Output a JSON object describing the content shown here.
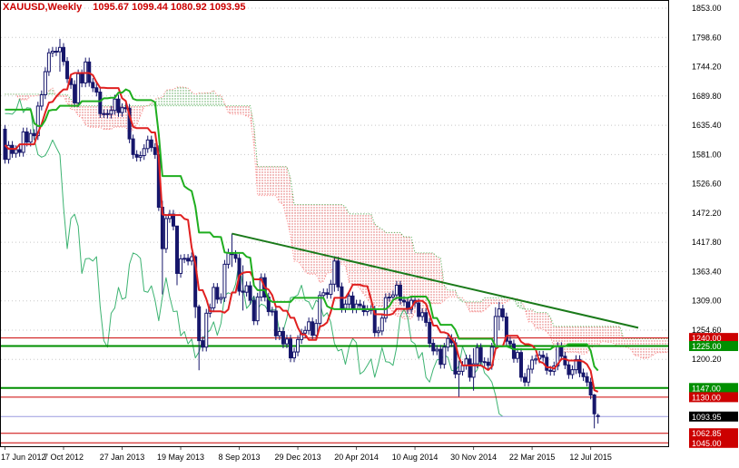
{
  "header": {
    "symbol_period": "XAUUSD,Weekly",
    "ohlc": "1095.67 1099.44 1080.92 1093.95"
  },
  "colors": {
    "title": "#cc0000",
    "background": "#ffffff",
    "border": "#000000",
    "grid": "#c8c8c8",
    "axis_text": "#000000",
    "bull": "#ffffff",
    "bear": "#16166b",
    "candle_stroke": "#16166b",
    "tenkan": "#e02020",
    "kijun": "#1fae1f",
    "senkou_a": "#ff7a7a",
    "senkou_b": "#4caf50",
    "cloud_red": "#e06060",
    "cloud_green": "#5aa85a",
    "chikou": "#3cb371",
    "trendline": "#1a7a1a",
    "red_level": "#cc0000",
    "green_level": "#008f00",
    "current_line": "#9a9ae0",
    "current_badge": "#000000",
    "badge_text": "#ffffff"
  },
  "chart_data": {
    "type": "candlestick",
    "symbol": "XAUUSD",
    "timeframe": "Weekly",
    "indicators": [
      "Ichimoku Kinko Hyo (9,26,52)",
      "descending trendline",
      "horizontal support/resistance levels"
    ],
    "y_axis": {
      "labels": [
        1853.0,
        1798.6,
        1744.2,
        1689.8,
        1635.4,
        1581.0,
        1526.6,
        1472.2,
        1417.8,
        1363.4,
        1309.0,
        1254.6,
        1200.2
      ],
      "step": 54.4,
      "ylim": [
        1037,
        1869
      ],
      "grid": true
    },
    "x_axis": {
      "labels": [
        "17 Jun 2012",
        "7 Oct 2012",
        "27 Jan 2013",
        "19 May 2013",
        "8 Sep 2013",
        "29 Dec 2013",
        "20 Apr 2014",
        "10 Aug 2014",
        "30 Nov 2014",
        "22 Mar 2015",
        "12 Jul 2015"
      ],
      "indices": [
        0,
        16,
        32,
        48,
        64,
        80,
        96,
        112,
        128,
        144,
        160
      ]
    },
    "pre_closes": [
      1620,
      1657,
      1622,
      1636,
      1680,
      1636,
      1743,
      1756,
      1788,
      1725,
      1688,
      1747,
      1712,
      1598,
      1604,
      1606,
      1617,
      1639,
      1664,
      1721,
      1725,
      1774,
      1723,
      1712,
      1706,
      1660,
      1713,
      1662,
      1597,
      1643,
      1631,
      1642,
      1579,
      1592,
      1555,
      1594,
      1573,
      1627,
      1596,
      1628
    ],
    "closes": [
      1572,
      1598,
      1583,
      1590,
      1585,
      1623,
      1604,
      1620,
      1616,
      1671,
      1692,
      1735,
      1770,
      1773,
      1772,
      1780,
      1754,
      1722,
      1711,
      1677,
      1731,
      1714,
      1753,
      1715,
      1705,
      1697,
      1657,
      1657,
      1656,
      1663,
      1684,
      1659,
      1668,
      1667,
      1610,
      1581,
      1576,
      1579,
      1592,
      1608,
      1594,
      1581,
      1483,
      1406,
      1462,
      1470,
      1448,
      1360,
      1387,
      1388,
      1383,
      1391,
      1298,
      1235,
      1223,
      1286,
      1296,
      1334,
      1312,
      1315,
      1377,
      1398,
      1395,
      1388,
      1327,
      1325,
      1337,
      1310,
      1272,
      1316,
      1352,
      1316,
      1289,
      1290,
      1244,
      1252,
      1229,
      1238,
      1203,
      1214,
      1237,
      1249,
      1254,
      1270,
      1245,
      1267,
      1319,
      1324,
      1321,
      1340,
      1383,
      1335,
      1295,
      1303,
      1318,
      1294,
      1303,
      1300,
      1289,
      1293,
      1292,
      1250,
      1253,
      1277,
      1315,
      1316,
      1320,
      1338,
      1310,
      1307,
      1293,
      1310,
      1305,
      1280,
      1287,
      1269,
      1230,
      1216,
      1219,
      1191,
      1223,
      1239,
      1231,
      1173,
      1178,
      1189,
      1201,
      1167,
      1192,
      1222,
      1196,
      1195,
      1189,
      1223,
      1280,
      1294,
      1279,
      1234,
      1229,
      1202,
      1213,
      1167,
      1158,
      1182,
      1199,
      1201,
      1208,
      1204,
      1180,
      1178,
      1188,
      1224,
      1206,
      1190,
      1172,
      1181,
      1200,
      1175,
      1168,
      1158,
      1134,
      1099,
      1093.95
    ],
    "default_wick": 8,
    "wick_overrides": {
      "15": [
        1796,
        1735
      ],
      "42": [
        1598,
        1476
      ],
      "43": [
        1495,
        1321
      ],
      "47": [
        1445,
        1338
      ],
      "52": [
        1394,
        1277
      ],
      "53": [
        1302,
        1180
      ],
      "62": [
        1434,
        1372
      ],
      "65": [
        1375,
        1291
      ],
      "90": [
        1392,
        1326
      ],
      "124": [
        1198,
        1131
      ],
      "128": [
        1221,
        1142
      ],
      "134": [
        1297,
        1217
      ],
      "135": [
        1307,
        1254
      ],
      "161": [
        1136,
        1072
      ]
    },
    "last_candle": {
      "o": 1095.67,
      "h": 1099.44,
      "l": 1080.92,
      "c": 1093.95
    },
    "trendline": {
      "i1": 62,
      "p1": 1434,
      "i2": 173,
      "p2": 1259
    },
    "hlines": [
      {
        "price": 1240.0,
        "color": "#cc0000",
        "width": 1
      },
      {
        "price": 1225.0,
        "color": "#008f00",
        "width": 2
      },
      {
        "price": 1147.0,
        "color": "#008f00",
        "width": 2
      },
      {
        "price": 1130.0,
        "color": "#cc0000",
        "width": 1
      },
      {
        "price": 1062.85,
        "color": "#cc0000",
        "width": 1
      },
      {
        "price": 1045.0,
        "color": "#cc0000",
        "width": 1
      }
    ],
    "current_price": {
      "value": 1093.95
    }
  }
}
